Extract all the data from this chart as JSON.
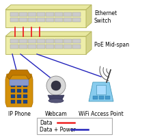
{
  "bg_color": "#ffffff",
  "switch_face_color": "#eeeeaa",
  "switch_top_color": "#e8e8a0",
  "switch_side_color": "#d4d488",
  "switch_edge_color": "#b8b860",
  "port_color": "#cccccc",
  "port_edge_color": "#999999",
  "red_line_color": "#ee2222",
  "blue_line_color": "#2222bb",
  "label_ethernet": "Ethernet\nSwitch",
  "label_poe": "PoE Mid-span",
  "label_phone": "IP Phone",
  "label_webcam": "Webcam",
  "label_wifi": "WiFi Access Point",
  "legend_data": "Data",
  "legend_data_power": "Data + Power",
  "font_size": 5.5
}
